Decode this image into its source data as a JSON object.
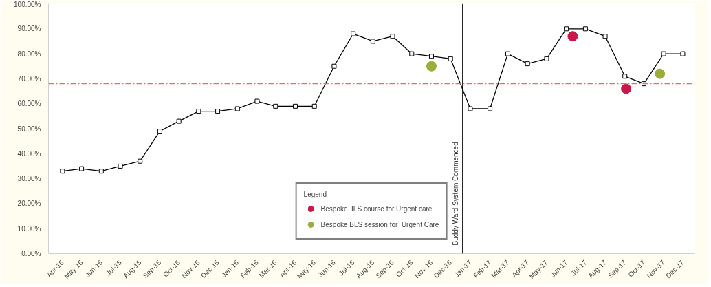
{
  "chart_data": {
    "type": "line",
    "x": [
      "2015-04",
      "2015-05",
      "2015-06",
      "2015-07",
      "2015-08",
      "2015-09",
      "2015-10",
      "2015-11",
      "2015-12",
      "2016-01",
      "2016-02",
      "2016-03",
      "2016-04",
      "2016-05",
      "2016-06",
      "2016-07",
      "2016-08",
      "2016-09",
      "2016-10",
      "2016-11",
      "2016-12",
      "2017-01",
      "2017-02",
      "2017-03",
      "2017-04",
      "2017-05",
      "2017-06",
      "2017-07",
      "2017-08",
      "2017-09",
      "2017-10",
      "2017-11",
      "2017-12"
    ],
    "xlim": [
      "2015-03-10",
      "2017-12-20"
    ],
    "xticks": [
      {
        "value": "2015-04",
        "label": "Apr-15"
      },
      {
        "value": "2015-05",
        "label": "May-15"
      },
      {
        "value": "2015-06",
        "label": "Jun-15"
      },
      {
        "value": "2015-07",
        "label": "Jul-15"
      },
      {
        "value": "2015-08",
        "label": "Aug-15"
      },
      {
        "value": "2015-09",
        "label": "Sep-15"
      },
      {
        "value": "2015-10",
        "label": "Oct-15"
      },
      {
        "value": "2015-11",
        "label": "Nov-15"
      },
      {
        "value": "2015-12",
        "label": "Dec-15"
      },
      {
        "value": "2016-01",
        "label": "Jan-16"
      },
      {
        "value": "2016-02",
        "label": "Feb-16"
      },
      {
        "value": "2016-03",
        "label": "Mar-16"
      },
      {
        "value": "2016-04",
        "label": "Apr-16"
      },
      {
        "value": "2016-05",
        "label": "May-16"
      },
      {
        "value": "2016-06",
        "label": "Jun-16"
      },
      {
        "value": "2016-07",
        "label": "Jul-16"
      },
      {
        "value": "2016-08",
        "label": "Aug-16"
      },
      {
        "value": "2016-09",
        "label": "Sep-16"
      },
      {
        "value": "2016-10",
        "label": "Oct-16"
      },
      {
        "value": "2016-11",
        "label": "Nov-16"
      },
      {
        "value": "2016-12",
        "label": "Dec-16"
      },
      {
        "value": "2017-01",
        "label": "Jan-17"
      },
      {
        "value": "2017-02",
        "label": "Feb-17"
      },
      {
        "value": "2017-03",
        "label": "Mar-17"
      },
      {
        "value": "2017-04",
        "label": "Apr-17"
      },
      {
        "value": "2017-05",
        "label": "May-17"
      },
      {
        "value": "2017-06",
        "label": "Jun-17"
      },
      {
        "value": "2017-07",
        "label": "Jul-17"
      },
      {
        "value": "2017-08",
        "label": "Aug-17"
      },
      {
        "value": "2017-09",
        "label": "Sep-17"
      },
      {
        "value": "2017-10",
        "label": "Oct-17"
      },
      {
        "value": "2017-11",
        "label": "Nov-17"
      },
      {
        "value": "2017-12",
        "label": "Dec-17"
      }
    ],
    "ylim": [
      0,
      100
    ],
    "yticks": [
      {
        "value": 0,
        "label": "0.00%"
      },
      {
        "value": 10,
        "label": "10.00%"
      },
      {
        "value": 20,
        "label": "20.00%"
      },
      {
        "value": 30,
        "label": "30.00%"
      },
      {
        "value": 40,
        "label": "40.00%"
      },
      {
        "value": 50,
        "label": "50.00%"
      },
      {
        "value": 60,
        "label": "60.00%"
      },
      {
        "value": 70,
        "label": "70.00%"
      },
      {
        "value": 80,
        "label": "80.00%"
      },
      {
        "value": 90,
        "label": "90.00%"
      },
      {
        "value": 100,
        "label": "100.00%"
      }
    ],
    "series": [
      {
        "color": "#000000",
        "marker": "square",
        "values": [
          33,
          34,
          33,
          35,
          37,
          49,
          53,
          57,
          57,
          58,
          61,
          59,
          59,
          59,
          75,
          88,
          85,
          87,
          80,
          79,
          78,
          58,
          58,
          80,
          76,
          78,
          90,
          90,
          87,
          71,
          68,
          80,
          80
        ]
      },
      {
        "type": "scatter",
        "name": "Bespoke  ILS course for Urgent care",
        "color": "#c8184a",
        "marker": "circle",
        "x": [
          "2017-06-11",
          "2017-09-03"
        ],
        "values": [
          87,
          66
        ]
      },
      {
        "type": "scatter",
        "name": "Bespoke BLS session for  Urgent Care",
        "color": "#9aae38",
        "marker": "circle",
        "x": [
          "2016-11-01",
          "2017-10-26"
        ],
        "values": [
          75,
          72
        ]
      }
    ],
    "legend_title": "Legend",
    "legend": "bottom",
    "ref_lines": [
      {
        "axis": "y",
        "value": 68,
        "label": null,
        "color": "#e07070",
        "line_style": "dashed"
      },
      {
        "axis": "x",
        "value": "2016-12-20",
        "label": "Buddy Ward System Commenced",
        "color": "#000000",
        "line_style": "solid"
      }
    ],
    "grid": false
  }
}
